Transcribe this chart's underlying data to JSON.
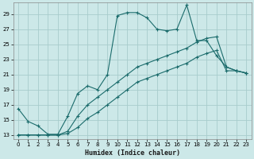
{
  "xlabel": "Humidex (Indice chaleur)",
  "bg_color": "#cce8e8",
  "grid_color": "#a8cccc",
  "line_color": "#1a6b6b",
  "xlim": [
    -0.5,
    23.5
  ],
  "ylim": [
    12.5,
    30.5
  ],
  "xticks": [
    0,
    1,
    2,
    3,
    4,
    5,
    6,
    7,
    8,
    9,
    10,
    11,
    12,
    13,
    14,
    15,
    16,
    17,
    18,
    19,
    20,
    21,
    22,
    23
  ],
  "yticks": [
    13,
    15,
    17,
    19,
    21,
    23,
    25,
    27,
    29
  ],
  "series1_x": [
    0,
    1,
    2,
    3,
    4,
    5,
    6,
    7,
    8,
    9,
    10,
    11,
    12,
    13,
    14,
    15,
    16,
    17,
    18,
    19,
    20,
    21,
    22,
    23
  ],
  "series1_y": [
    16.5,
    14.8,
    14.2,
    13.1,
    13.1,
    15.5,
    18.5,
    19.5,
    19.0,
    21.0,
    28.8,
    29.2,
    29.2,
    28.5,
    27.0,
    26.8,
    27.0,
    30.2,
    25.5,
    25.5,
    23.5,
    22.0,
    21.5,
    21.2
  ],
  "series2_x": [
    0,
    1,
    2,
    3,
    4,
    5,
    6,
    7,
    8,
    9,
    10,
    11,
    12,
    13,
    14,
    15,
    16,
    17,
    18,
    19,
    20,
    21,
    22,
    23
  ],
  "series2_y": [
    13.0,
    13.0,
    13.0,
    13.0,
    13.0,
    13.5,
    15.5,
    17.0,
    18.0,
    19.0,
    20.0,
    21.0,
    22.0,
    22.5,
    23.0,
    23.5,
    24.0,
    24.5,
    25.3,
    25.8,
    26.0,
    22.0,
    21.5,
    21.2
  ],
  "series3_x": [
    0,
    1,
    2,
    3,
    4,
    5,
    6,
    7,
    8,
    9,
    10,
    11,
    12,
    13,
    14,
    15,
    16,
    17,
    18,
    19,
    20,
    21,
    22,
    23
  ],
  "series3_y": [
    13.0,
    13.0,
    13.0,
    13.0,
    13.0,
    13.2,
    14.0,
    15.2,
    16.0,
    17.0,
    18.0,
    19.0,
    20.0,
    20.5,
    21.0,
    21.5,
    22.0,
    22.5,
    23.3,
    23.8,
    24.2,
    21.5,
    21.5,
    21.2
  ]
}
